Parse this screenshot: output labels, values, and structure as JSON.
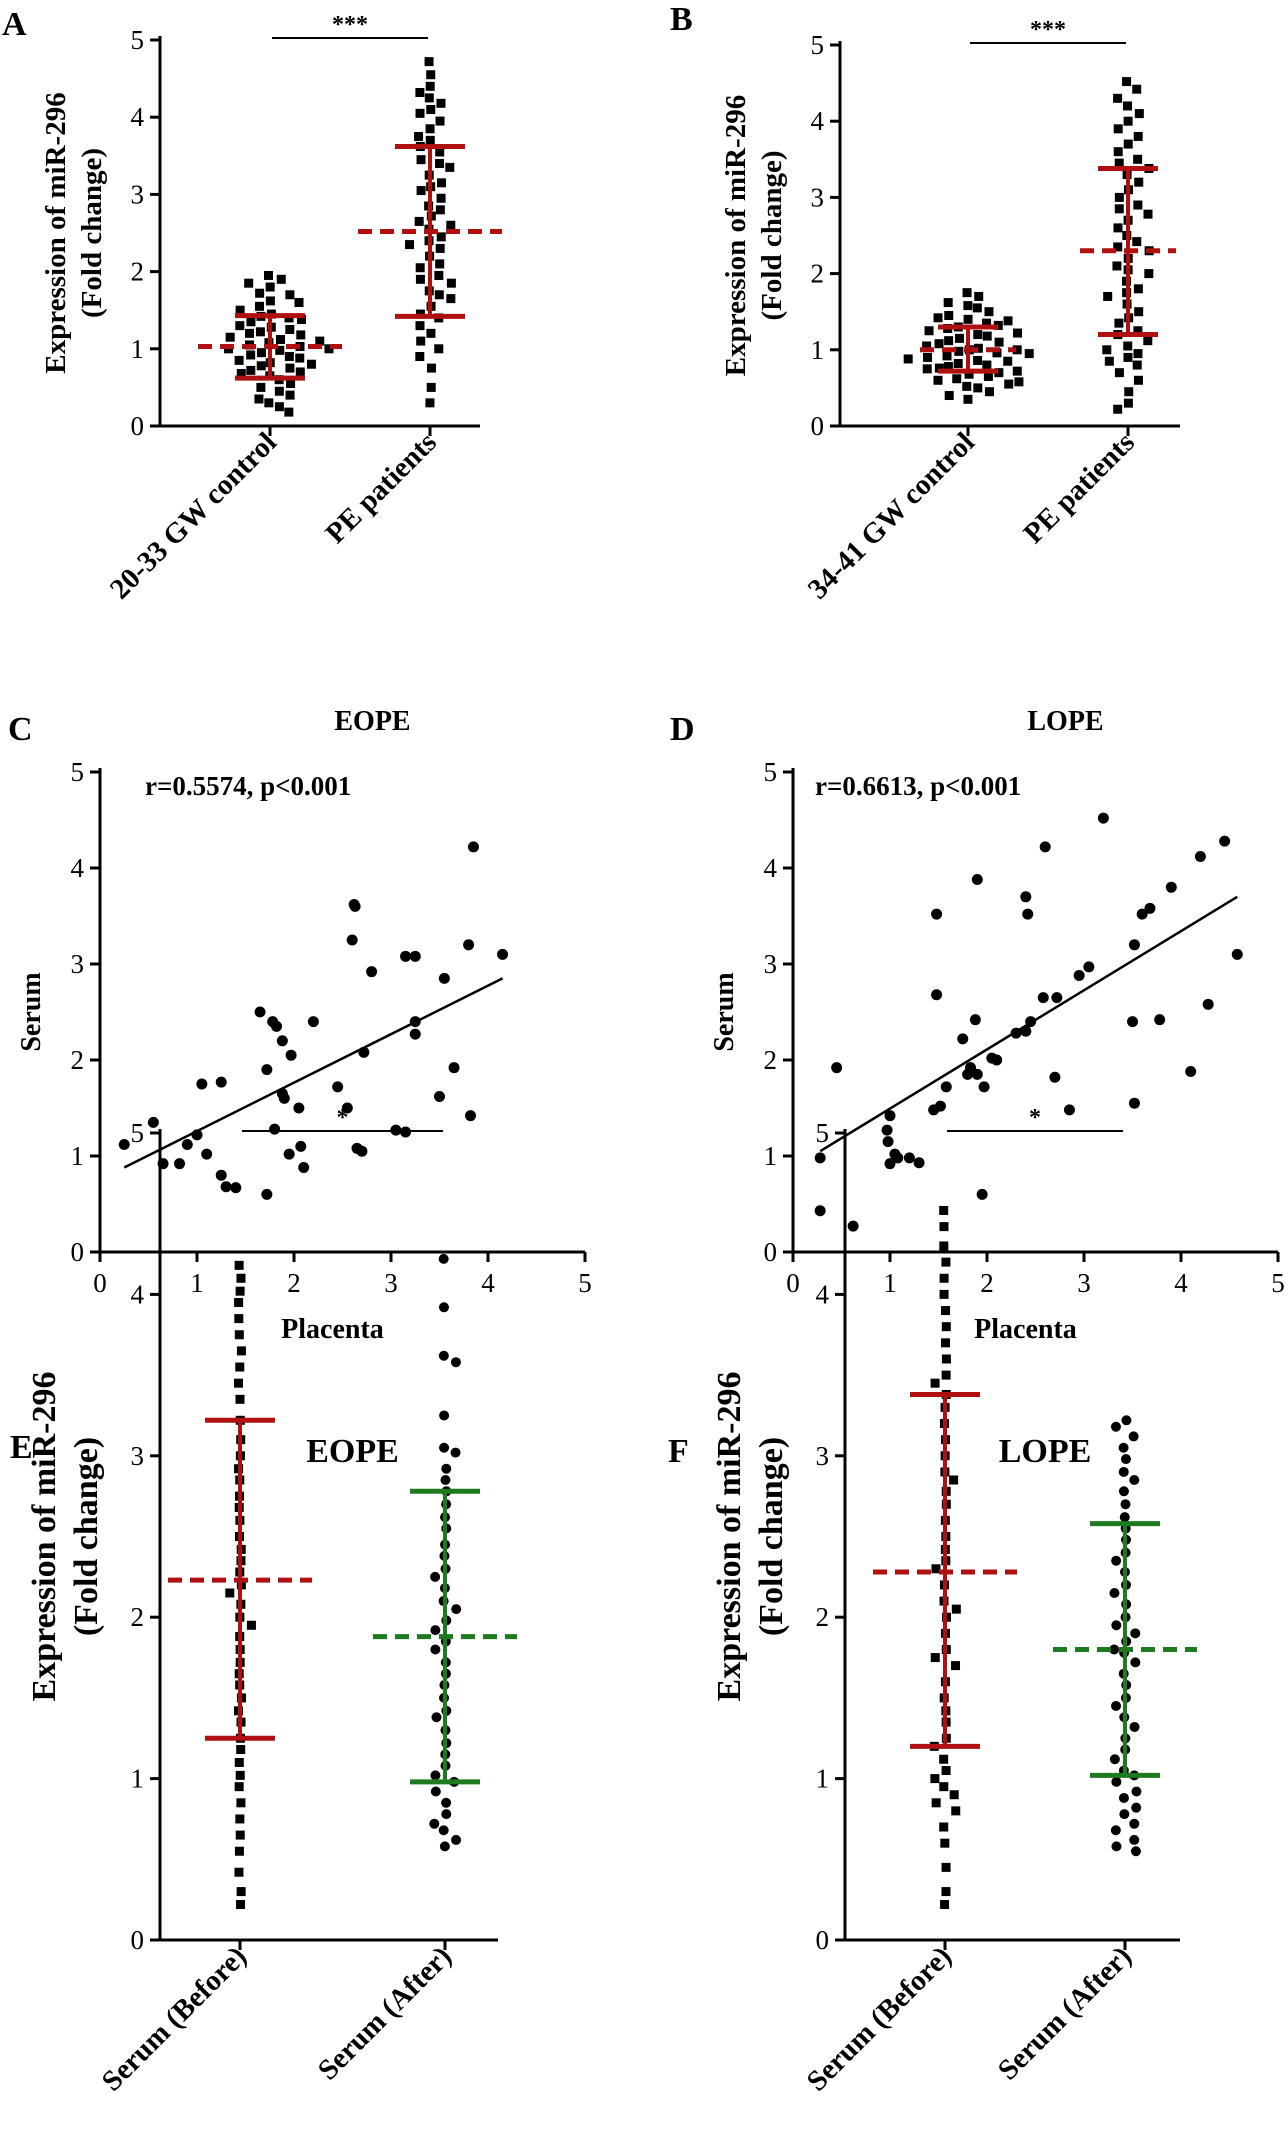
{
  "figure_colors": {
    "red": "#b01010",
    "green": "#1e7a1e",
    "black": "#000000"
  },
  "chart_data": [
    {
      "panel": "A",
      "type": "scatter",
      "title": "",
      "ylabel": [
        "Expression of miR-296",
        "(Fold change)"
      ],
      "xlabel": "",
      "ylim": [
        0,
        5
      ],
      "yticks": [
        0,
        1,
        2,
        3,
        4,
        5
      ],
      "categories": [
        "20-33 GW control",
        "PE patients"
      ],
      "significance": "***",
      "groups": [
        {
          "name": "20-33 GW control",
          "color": "red",
          "mean": 1.03,
          "sd_low": 0.62,
          "sd_high": 1.43,
          "values": [
            1.95,
            1.9,
            1.85,
            1.8,
            1.72,
            1.7,
            1.62,
            1.6,
            1.55,
            1.5,
            1.45,
            1.42,
            1.4,
            1.38,
            1.35,
            1.3,
            1.28,
            1.25,
            1.22,
            1.2,
            1.18,
            1.15,
            1.12,
            1.1,
            1.08,
            1.05,
            1.03,
            1.0,
            1.0,
            0.98,
            0.95,
            0.92,
            0.9,
            0.88,
            0.85,
            0.82,
            0.8,
            0.78,
            0.75,
            0.72,
            0.7,
            0.68,
            0.65,
            0.6,
            0.55,
            0.5,
            0.45,
            0.4,
            0.35,
            0.3,
            0.25,
            0.18
          ]
        },
        {
          "name": "PE patients",
          "color": "red",
          "mean": 2.52,
          "sd_low": 1.42,
          "sd_high": 3.62,
          "values": [
            4.72,
            4.55,
            4.4,
            4.32,
            4.25,
            4.18,
            4.1,
            4.05,
            3.95,
            3.85,
            3.75,
            3.7,
            3.62,
            3.55,
            3.45,
            3.4,
            3.35,
            3.25,
            3.15,
            3.1,
            3.05,
            2.95,
            2.85,
            2.8,
            2.72,
            2.65,
            2.6,
            2.55,
            2.45,
            2.4,
            2.35,
            2.3,
            2.2,
            2.1,
            2.05,
            1.95,
            1.9,
            1.85,
            1.75,
            1.7,
            1.65,
            1.55,
            1.45,
            1.4,
            1.3,
            1.2,
            1.1,
            1.0,
            0.9,
            0.75,
            0.5,
            0.3
          ]
        }
      ]
    },
    {
      "panel": "B",
      "type": "scatter",
      "title": "",
      "ylabel": [
        "Expression of miR-296",
        "(Fold change)"
      ],
      "xlabel": "",
      "ylim": [
        0,
        5
      ],
      "yticks": [
        0,
        1,
        2,
        3,
        4,
        5
      ],
      "categories": [
        "34-41 GW control",
        "PE patients"
      ],
      "significance": "***",
      "groups": [
        {
          "name": "34-41 GW control",
          "color": "red",
          "mean": 1.0,
          "sd_low": 0.72,
          "sd_high": 1.3,
          "values": [
            1.75,
            1.7,
            1.62,
            1.58,
            1.55,
            1.5,
            1.45,
            1.42,
            1.4,
            1.38,
            1.35,
            1.32,
            1.3,
            1.28,
            1.25,
            1.22,
            1.2,
            1.18,
            1.15,
            1.12,
            1.1,
            1.08,
            1.05,
            1.02,
            1.0,
            1.0,
            0.98,
            0.96,
            0.95,
            0.92,
            0.9,
            0.88,
            0.86,
            0.85,
            0.82,
            0.8,
            0.78,
            0.76,
            0.75,
            0.72,
            0.7,
            0.68,
            0.65,
            0.62,
            0.6,
            0.58,
            0.55,
            0.52,
            0.5,
            0.45,
            0.4,
            0.35
          ]
        },
        {
          "name": "PE patients",
          "color": "red",
          "mean": 2.3,
          "sd_low": 1.2,
          "sd_high": 3.38,
          "values": [
            4.52,
            4.42,
            4.3,
            4.2,
            4.1,
            4.0,
            3.9,
            3.8,
            3.7,
            3.6,
            3.5,
            3.45,
            3.38,
            3.3,
            3.2,
            3.1,
            3.0,
            2.9,
            2.85,
            2.78,
            2.7,
            2.6,
            2.5,
            2.42,
            2.35,
            2.3,
            2.2,
            2.1,
            2.05,
            2.0,
            1.9,
            1.8,
            1.75,
            1.7,
            1.6,
            1.5,
            1.42,
            1.35,
            1.25,
            1.2,
            1.12,
            1.05,
            1.0,
            0.95,
            0.9,
            0.85,
            0.8,
            0.7,
            0.6,
            0.45,
            0.3,
            0.22
          ]
        }
      ]
    },
    {
      "panel": "C",
      "type": "scatter",
      "title": "EOPE",
      "annotation": "r=0.5574, p<0.001",
      "xlabel": "Placenta",
      "ylabel": [
        "Serum"
      ],
      "xlim": [
        0,
        5
      ],
      "ylim": [
        0,
        5
      ],
      "xticks": [
        0,
        1,
        2,
        3,
        4,
        5
      ],
      "yticks": [
        0,
        1,
        2,
        3,
        4,
        5
      ],
      "fit": {
        "x": [
          0.25,
          4.15
        ],
        "y": [
          0.88,
          2.85
        ]
      },
      "points": [
        [
          0.25,
          1.12
        ],
        [
          0.55,
          1.35
        ],
        [
          0.65,
          0.92
        ],
        [
          0.82,
          0.92
        ],
        [
          0.9,
          1.12
        ],
        [
          1.0,
          1.22
        ],
        [
          1.05,
          1.75
        ],
        [
          1.1,
          1.02
        ],
        [
          1.25,
          0.8
        ],
        [
          1.25,
          1.77
        ],
        [
          1.3,
          0.68
        ],
        [
          1.4,
          0.67
        ],
        [
          1.65,
          2.5
        ],
        [
          1.72,
          0.6
        ],
        [
          1.72,
          1.9
        ],
        [
          1.78,
          2.4
        ],
        [
          1.8,
          1.28
        ],
        [
          1.82,
          2.35
        ],
        [
          1.88,
          1.65
        ],
        [
          1.88,
          2.2
        ],
        [
          1.9,
          1.6
        ],
        [
          1.95,
          1.02
        ],
        [
          1.97,
          2.05
        ],
        [
          2.05,
          1.5
        ],
        [
          2.07,
          1.1
        ],
        [
          2.1,
          0.88
        ],
        [
          2.2,
          2.4
        ],
        [
          2.45,
          1.72
        ],
        [
          2.55,
          1.5
        ],
        [
          2.6,
          3.25
        ],
        [
          2.62,
          3.62
        ],
        [
          2.63,
          3.6
        ],
        [
          2.65,
          1.08
        ],
        [
          2.7,
          1.05
        ],
        [
          2.72,
          2.08
        ],
        [
          2.8,
          2.92
        ],
        [
          3.05,
          1.27
        ],
        [
          3.15,
          3.08
        ],
        [
          3.15,
          1.25
        ],
        [
          3.25,
          3.08
        ],
        [
          3.25,
          2.27
        ],
        [
          3.25,
          2.4
        ],
        [
          3.5,
          1.62
        ],
        [
          3.55,
          2.85
        ],
        [
          3.65,
          1.92
        ],
        [
          3.8,
          3.2
        ],
        [
          3.82,
          1.42
        ],
        [
          3.85,
          4.22
        ],
        [
          4.15,
          3.1
        ]
      ]
    },
    {
      "panel": "D",
      "type": "scatter",
      "title": "LOPE",
      "annotation": "r=0.6613, p<0.001",
      "xlabel": "Placenta",
      "ylabel": [
        "Serum"
      ],
      "xlim": [
        0,
        5
      ],
      "ylim": [
        0,
        5
      ],
      "xticks": [
        0,
        1,
        2,
        3,
        4,
        5
      ],
      "yticks": [
        0,
        1,
        2,
        3,
        4,
        5
      ],
      "fit": {
        "x": [
          0.28,
          4.58
        ],
        "y": [
          1.05,
          3.7
        ]
      },
      "points": [
        [
          0.28,
          0.98
        ],
        [
          0.28,
          0.43
        ],
        [
          0.45,
          1.92
        ],
        [
          0.62,
          0.27
        ],
        [
          0.97,
          1.27
        ],
        [
          0.98,
          1.15
        ],
        [
          1.0,
          0.92
        ],
        [
          1.0,
          1.42
        ],
        [
          1.05,
          1.02
        ],
        [
          1.08,
          0.98
        ],
        [
          1.2,
          0.98
        ],
        [
          1.3,
          0.93
        ],
        [
          1.45,
          1.48
        ],
        [
          1.48,
          2.68
        ],
        [
          1.48,
          3.52
        ],
        [
          1.52,
          1.52
        ],
        [
          1.58,
          1.72
        ],
        [
          1.75,
          2.22
        ],
        [
          1.8,
          1.85
        ],
        [
          1.83,
          1.92
        ],
        [
          1.88,
          2.42
        ],
        [
          1.9,
          1.85
        ],
        [
          1.9,
          3.88
        ],
        [
          1.95,
          0.6
        ],
        [
          1.97,
          1.72
        ],
        [
          2.05,
          2.02
        ],
        [
          2.1,
          2.0
        ],
        [
          2.3,
          2.28
        ],
        [
          2.4,
          2.3
        ],
        [
          2.4,
          3.7
        ],
        [
          2.42,
          3.52
        ],
        [
          2.45,
          2.4
        ],
        [
          2.58,
          2.65
        ],
        [
          2.6,
          4.22
        ],
        [
          2.7,
          1.82
        ],
        [
          2.72,
          2.65
        ],
        [
          2.85,
          1.48
        ],
        [
          2.95,
          2.88
        ],
        [
          3.05,
          2.97
        ],
        [
          3.2,
          4.52
        ],
        [
          3.5,
          2.4
        ],
        [
          3.52,
          3.2
        ],
        [
          3.52,
          1.55
        ],
        [
          3.6,
          3.52
        ],
        [
          3.68,
          3.58
        ],
        [
          3.78,
          2.42
        ],
        [
          3.9,
          3.8
        ],
        [
          4.1,
          1.88
        ],
        [
          4.2,
          4.12
        ],
        [
          4.28,
          2.58
        ],
        [
          4.45,
          4.28
        ],
        [
          4.58,
          3.1
        ]
      ]
    },
    {
      "panel": "E",
      "type": "scatter",
      "title": "EOPE",
      "ylabel": [
        "Expression of miR-296",
        "(Fold change)"
      ],
      "xlabel": "",
      "ylim": [
        0,
        5
      ],
      "yticks": [
        0,
        1,
        2,
        3,
        4,
        5
      ],
      "categories": [
        "Serum (Before)",
        "Serum (After)"
      ],
      "significance": "*",
      "groups": [
        {
          "name": "Serum (Before)",
          "color": "red",
          "mean": 2.23,
          "sd_low": 1.25,
          "sd_high": 3.22,
          "values": [
            4.18,
            4.1,
            4.02,
            3.95,
            3.85,
            3.75,
            3.65,
            3.55,
            3.45,
            3.35,
            3.22,
            3.1,
            3.0,
            2.92,
            2.85,
            2.75,
            2.68,
            2.6,
            2.5,
            2.42,
            2.35,
            2.28,
            2.2,
            2.15,
            2.08,
            2.0,
            1.95,
            1.88,
            1.8,
            1.72,
            1.65,
            1.58,
            1.5,
            1.42,
            1.35,
            1.25,
            1.18,
            1.1,
            1.02,
            0.95,
            0.85,
            0.75,
            0.65,
            0.55,
            0.42,
            0.3,
            0.22
          ]
        },
        {
          "name": "Serum (After)",
          "color": "green",
          "mean": 1.88,
          "sd_low": 0.98,
          "sd_high": 2.78,
          "values": [
            4.22,
            3.92,
            3.62,
            3.58,
            3.25,
            3.05,
            3.02,
            2.92,
            2.85,
            2.78,
            2.7,
            2.62,
            2.55,
            2.45,
            2.38,
            2.3,
            2.25,
            2.18,
            2.1,
            2.05,
            1.98,
            1.92,
            1.85,
            1.8,
            1.72,
            1.65,
            1.58,
            1.5,
            1.42,
            1.38,
            1.3,
            1.22,
            1.15,
            1.08,
            1.02,
            0.98,
            0.92,
            0.85,
            0.78,
            0.72,
            0.68,
            0.62,
            0.58
          ]
        }
      ]
    },
    {
      "panel": "F",
      "type": "scatter",
      "title": "LOPE",
      "ylabel": [
        "Expression of miR-296",
        "(Fold change)"
      ],
      "xlabel": "",
      "ylim": [
        0,
        5
      ],
      "yticks": [
        0,
        1,
        2,
        3,
        4,
        5
      ],
      "categories": [
        "Serum (Before)",
        "Serum (After)"
      ],
      "significance": "*",
      "groups": [
        {
          "name": "Serum (Before)",
          "color": "red",
          "mean": 2.28,
          "sd_low": 1.2,
          "sd_high": 3.38,
          "values": [
            4.52,
            4.42,
            4.3,
            4.2,
            4.1,
            4.0,
            3.9,
            3.8,
            3.7,
            3.6,
            3.5,
            3.45,
            3.38,
            3.3,
            3.2,
            3.1,
            3.0,
            2.9,
            2.85,
            2.78,
            2.7,
            2.6,
            2.5,
            2.42,
            2.35,
            2.3,
            2.2,
            2.1,
            2.05,
            2.0,
            1.9,
            1.8,
            1.75,
            1.7,
            1.6,
            1.5,
            1.42,
            1.35,
            1.25,
            1.2,
            1.12,
            1.05,
            1.0,
            0.95,
            0.9,
            0.85,
            0.8,
            0.7,
            0.6,
            0.45,
            0.3,
            0.22
          ]
        },
        {
          "name": "Serum (After)",
          "color": "green",
          "mean": 1.8,
          "sd_low": 1.02,
          "sd_high": 2.58,
          "values": [
            3.22,
            3.18,
            3.12,
            3.05,
            2.98,
            2.9,
            2.85,
            2.78,
            2.7,
            2.62,
            2.55,
            2.48,
            2.4,
            2.35,
            2.28,
            2.2,
            2.15,
            2.08,
            2.0,
            1.95,
            1.9,
            1.85,
            1.8,
            1.78,
            1.72,
            1.65,
            1.58,
            1.5,
            1.45,
            1.38,
            1.32,
            1.25,
            1.18,
            1.12,
            1.05,
            1.02,
            0.98,
            0.92,
            0.88,
            0.82,
            0.78,
            0.72,
            0.68,
            0.62,
            0.58,
            0.55
          ]
        }
      ]
    }
  ]
}
